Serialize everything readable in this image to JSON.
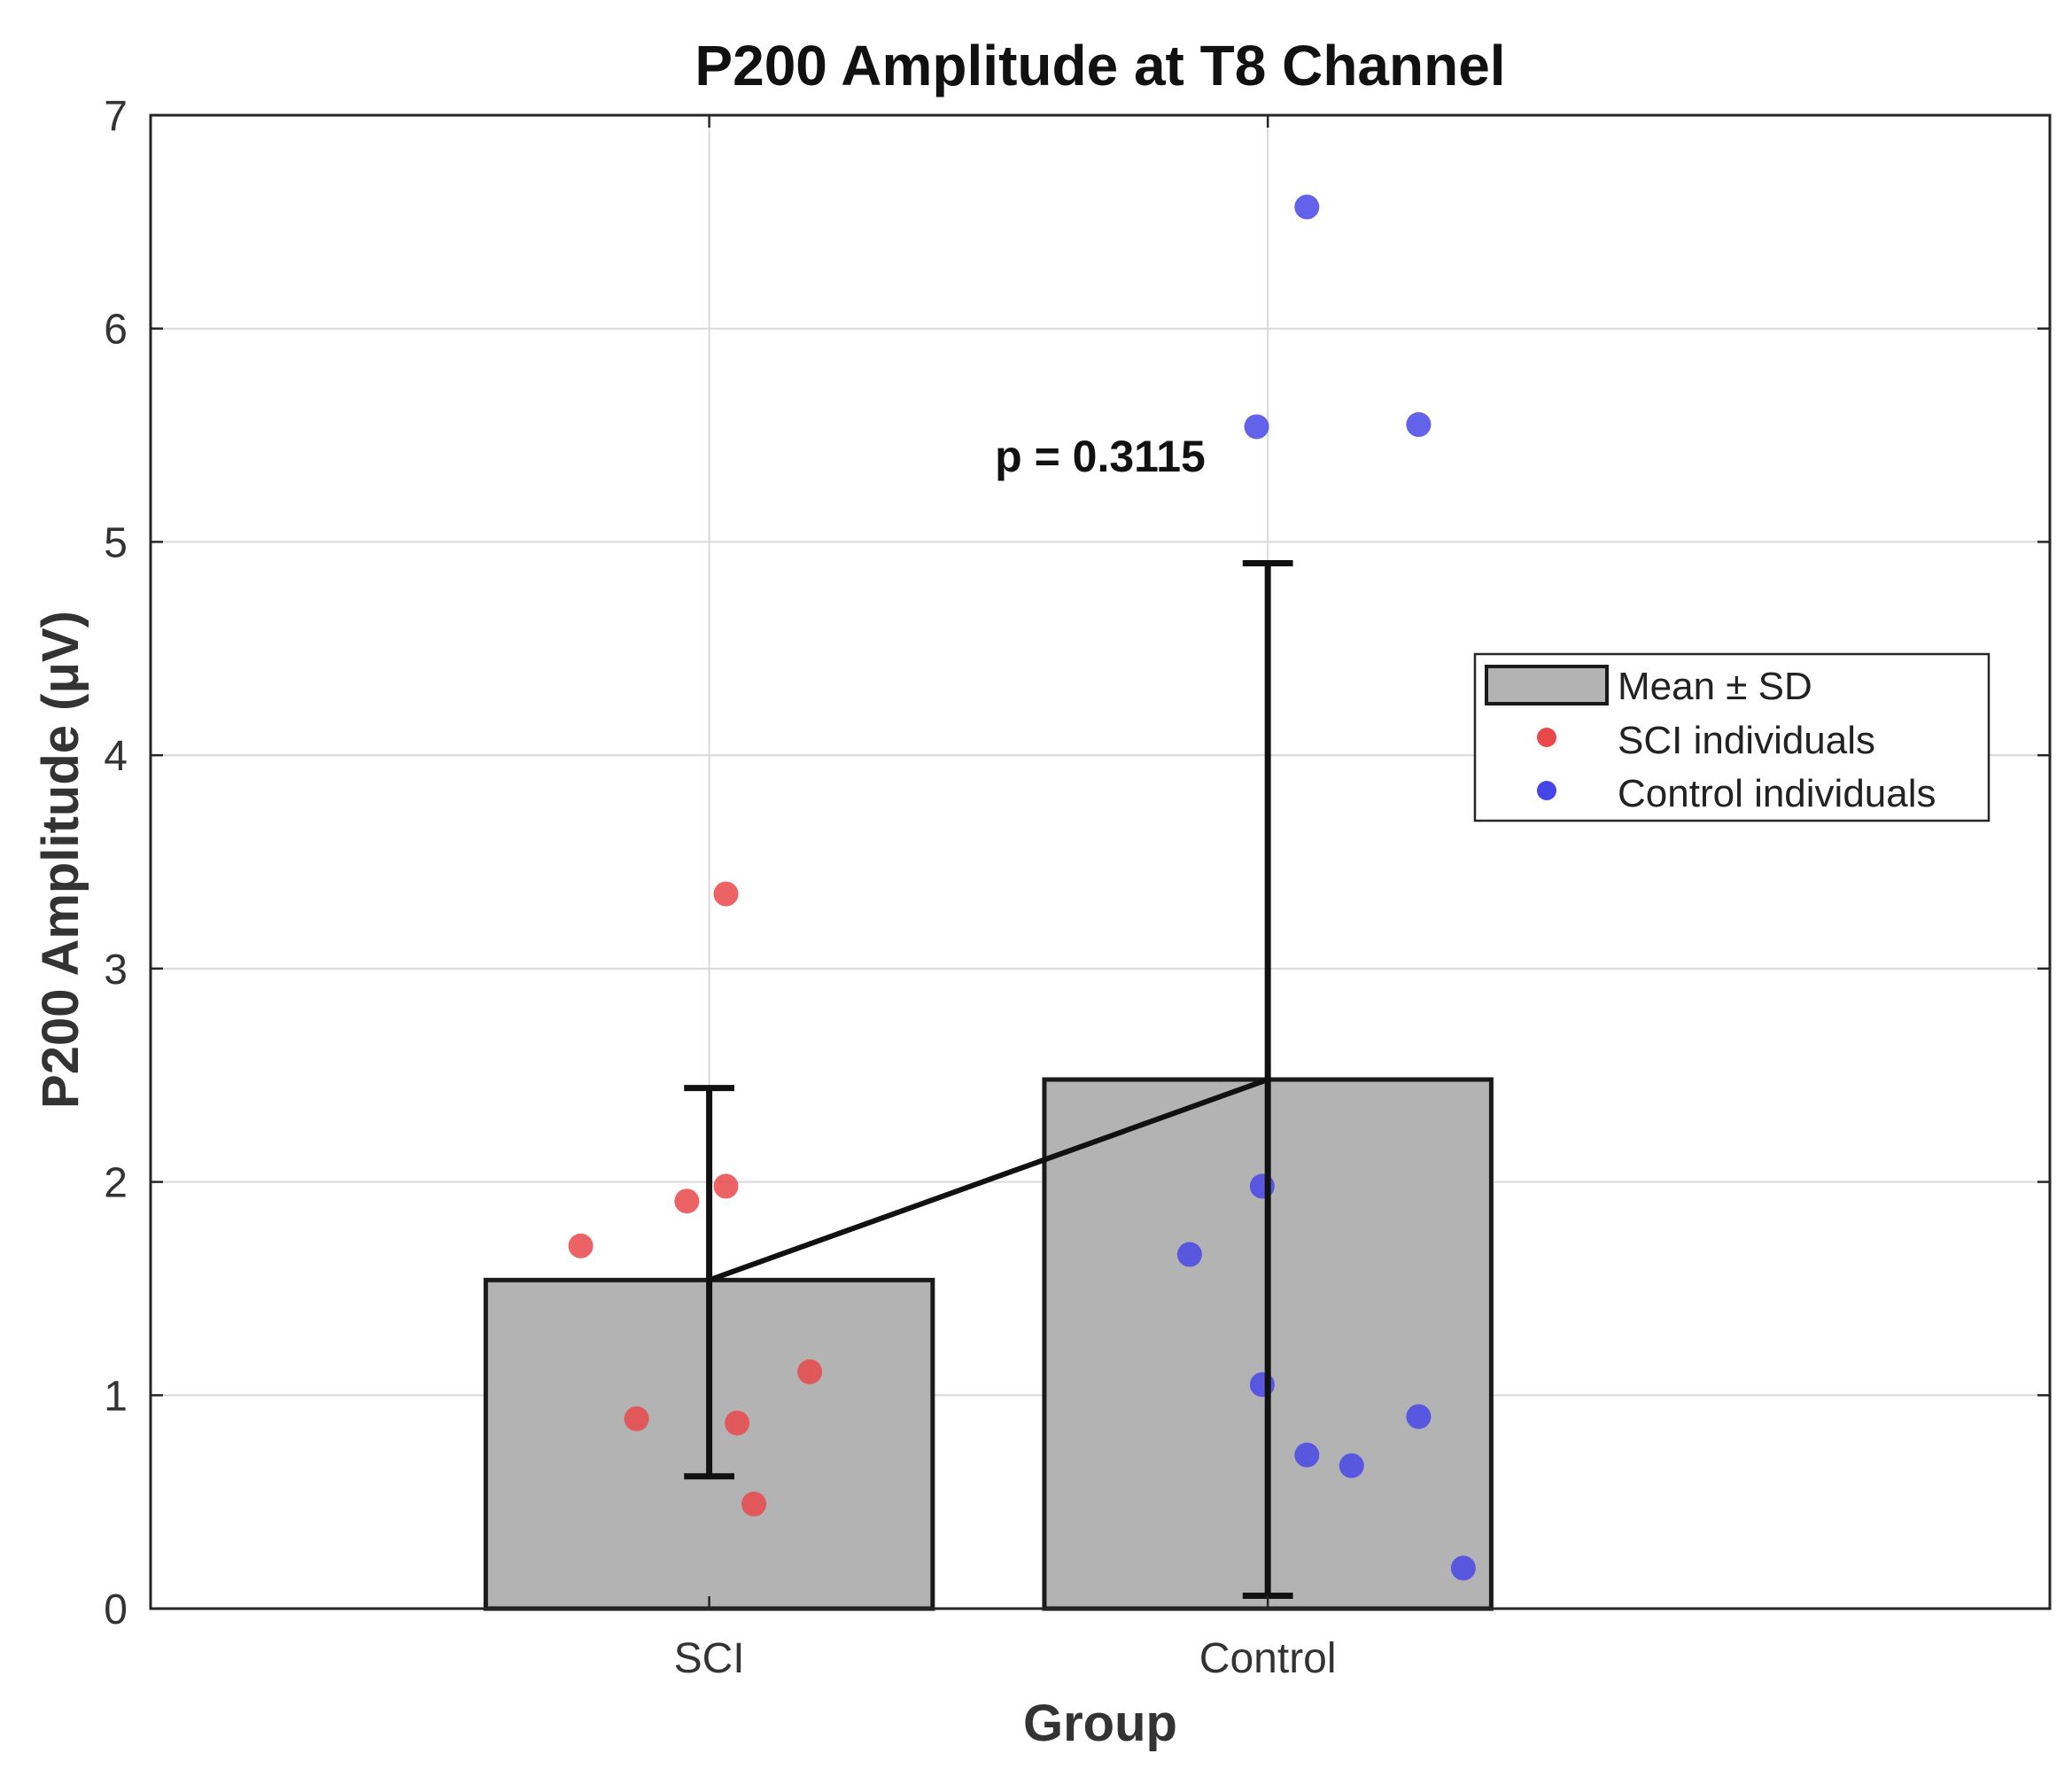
{
  "chart_data": {
    "type": "bar",
    "title": "P200 Amplitude at T8 Channel",
    "xlabel": "Group",
    "ylabel": "P200 Amplitude (μV)",
    "ylim": [
      0,
      7
    ],
    "yticks": [
      0,
      1,
      2,
      3,
      4,
      5,
      6,
      7
    ],
    "grid": true,
    "categories": [
      "SCI",
      "Control"
    ],
    "means": [
      1.54,
      2.48
    ],
    "sd_lower": [
      0.62,
      0.06
    ],
    "sd_upper": [
      2.44,
      4.9
    ],
    "annotation": "p = 0.3115",
    "legend": {
      "position": "right",
      "entries": [
        "Mean ± SD",
        "SCI individuals",
        "Control individuals"
      ]
    },
    "colors": {
      "bar": "#b3b3b3",
      "sci": "#e8484a",
      "control": "#4646e8"
    },
    "series": [
      {
        "name": "SCI individuals",
        "category": "SCI",
        "points": [
          {
            "x": 0.77,
            "y": 1.7
          },
          {
            "x": 0.87,
            "y": 0.89
          },
          {
            "x": 0.96,
            "y": 1.91
          },
          {
            "x": 1.03,
            "y": 3.35
          },
          {
            "x": 1.03,
            "y": 1.98
          },
          {
            "x": 1.05,
            "y": 0.87
          },
          {
            "x": 1.08,
            "y": 0.49
          },
          {
            "x": 1.18,
            "y": 1.11
          }
        ]
      },
      {
        "name": "Control individuals",
        "category": "Control",
        "points": [
          {
            "x": 1.86,
            "y": 1.66
          },
          {
            "x": 1.98,
            "y": 5.54
          },
          {
            "x": 1.99,
            "y": 1.98
          },
          {
            "x": 1.99,
            "y": 1.05
          },
          {
            "x": 2.07,
            "y": 6.57
          },
          {
            "x": 2.07,
            "y": 0.72
          },
          {
            "x": 2.15,
            "y": 0.67
          },
          {
            "x": 2.27,
            "y": 5.55
          },
          {
            "x": 2.27,
            "y": 0.9
          },
          {
            "x": 2.35,
            "y": 0.19
          }
        ]
      }
    ]
  }
}
